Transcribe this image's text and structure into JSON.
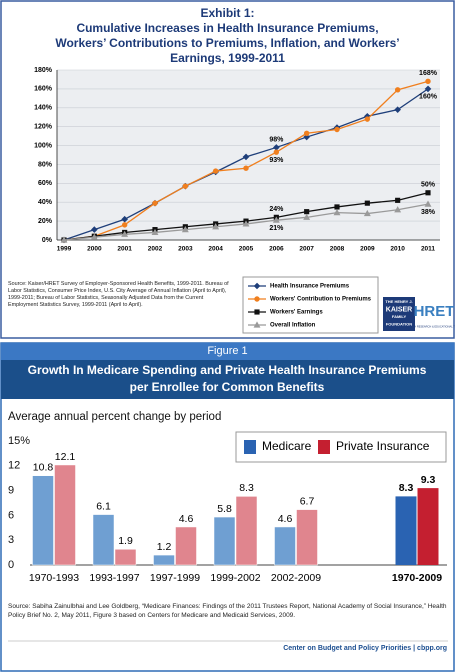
{
  "chart_data": [
    {
      "type": "line",
      "label": "Exhibit 1:",
      "title": "Cumulative Increases in Health Insurance Premiums, Workers’ Contributions to Premiums, Inflation, and Workers’ Earnings, 1999-2011",
      "categories": [
        "1999",
        "2000",
        "2001",
        "2002",
        "2003",
        "2004",
        "2005",
        "2006",
        "2007",
        "2008",
        "2009",
        "2010",
        "2011"
      ],
      "series": [
        {
          "name": "Health Insurance Premiums",
          "color": "#1f3f7a",
          "marker": "diamond",
          "values": [
            0,
            11,
            22,
            39,
            57,
            72,
            88,
            98,
            109,
            119,
            131,
            138,
            160
          ],
          "value_labels": [
            null,
            null,
            null,
            null,
            null,
            null,
            null,
            "98%",
            null,
            null,
            null,
            null,
            "160%"
          ]
        },
        {
          "name": "Workers' Contribution to Premiums",
          "color": "#f07f1e",
          "marker": "circle",
          "values": [
            0,
            4,
            16,
            39,
            57,
            73,
            76,
            93,
            113,
            117,
            128,
            159,
            168
          ],
          "value_labels": [
            null,
            null,
            null,
            null,
            null,
            null,
            null,
            "93%",
            null,
            null,
            null,
            null,
            "168%"
          ]
        },
        {
          "name": "Workers' Earnings",
          "color": "#111111",
          "marker": "square",
          "values": [
            0,
            4,
            8,
            11,
            14,
            17,
            20,
            24,
            30,
            35,
            39,
            42,
            50
          ],
          "value_labels": [
            null,
            null,
            null,
            null,
            null,
            null,
            null,
            "24%",
            null,
            null,
            null,
            null,
            "50%"
          ]
        },
        {
          "name": "Overall Inflation",
          "color": "#9a9a9a",
          "marker": "triangle",
          "values": [
            0,
            3,
            6,
            8,
            11,
            14,
            17,
            21,
            24,
            29,
            28,
            32,
            38
          ],
          "value_labels": [
            null,
            null,
            null,
            null,
            null,
            null,
            null,
            "21%",
            null,
            null,
            null,
            null,
            "38%"
          ]
        }
      ],
      "ylim": [
        0,
        180
      ],
      "yticks": [
        {
          "value": 0,
          "label": "0%"
        },
        {
          "value": 20,
          "label": "20%"
        },
        {
          "value": 40,
          "label": "40%"
        },
        {
          "value": 60,
          "label": "60%"
        },
        {
          "value": 80,
          "label": "80%"
        },
        {
          "value": 100,
          "label": "100%"
        },
        {
          "value": 120,
          "label": "120%"
        },
        {
          "value": 140,
          "label": "140%"
        },
        {
          "value": 160,
          "label": "160%"
        },
        {
          "value": 180,
          "label": "180%"
        }
      ],
      "grid": true,
      "source": "Source: Kaiser/HRET Survey of Employer-Sponsored Health Benefits, 1999-2011. Bureau of Labor Statistics, Consumer Price Index, U.S. City Average of Annual Inflation (April to April), 1999-2011; Bureau of Labor Statistics, Seasonally Adjusted Data from the Current Employment Statistics Survey, 1999-2011 (April to April).",
      "logos": {
        "kaiser": [
          "THE HENRY J.",
          "KAISER",
          "FAMILY",
          "FOUNDATION"
        ],
        "hret": [
          "HRET",
          "HEALTH RESEARCH & EDUCATIONAL TRUST"
        ]
      }
    },
    {
      "type": "bar",
      "label": "Figure 1",
      "title": "Growth In Medicare Spending and Private Health Insurance Premiums per Enrollee for Common Benefits",
      "subtitle": "Average annual percent change by period",
      "categories": [
        "1970-1993",
        "1993-1997",
        "1997-1999",
        "1999-2002",
        "2002-2009",
        "1970-2009"
      ],
      "highlight_category": 5,
      "series": [
        {
          "name": "Medicare",
          "color": "#6f9fd2",
          "highlight_color": "#2a63b2",
          "values": [
            10.8,
            6.1,
            1.2,
            5.8,
            4.6,
            8.3
          ]
        },
        {
          "name": "Private Insurance",
          "color": "#e0858e",
          "highlight_color": "#c41f30",
          "values": [
            12.1,
            1.9,
            4.6,
            8.3,
            6.7,
            9.3
          ]
        }
      ],
      "ylim": [
        0,
        15
      ],
      "yticks": [
        0,
        3,
        6,
        9,
        12,
        {
          "value": 15,
          "label": "15%"
        }
      ],
      "source": "Source: Sabiha Zainulbhai and Lee Goldberg, “Medicare Finances: Findings of the 2011 Trustees Report, National Academy of Social Insurance,” Health Policy Brief No. 2, May 2011, Figure 3 based on Centers for Medicare and Medicaid Services, 2009.",
      "credit": "Center on Budget and Policy Priorities | cbpp.org"
    }
  ]
}
